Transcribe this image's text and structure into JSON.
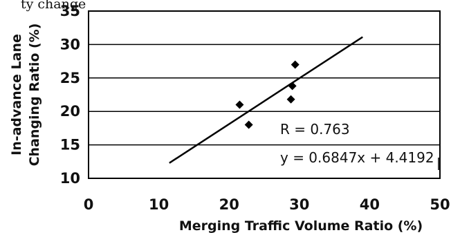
{
  "chart_data": {
    "type": "scatter",
    "top_partial_text": "ty change",
    "xlabel": "Merging Traffic Volume Ratio (%)",
    "ylabel_line1": "In-advance Lane",
    "ylabel_line2": "Changing Ratio (%)",
    "xlim": [
      0,
      50
    ],
    "ylim": [
      10,
      35
    ],
    "x_ticks": [
      "0",
      "10",
      "20",
      "30",
      "40",
      "50"
    ],
    "y_ticks": [
      "10",
      "15",
      "20",
      "25",
      "30",
      "35"
    ],
    "grid": "horizontal",
    "points": [
      {
        "x": 21.5,
        "y": 21.0
      },
      {
        "x": 22.8,
        "y": 18.0
      },
      {
        "x": 28.8,
        "y": 21.8
      },
      {
        "x": 29.0,
        "y": 23.8
      },
      {
        "x": 29.4,
        "y": 27.0
      }
    ],
    "trendline": {
      "x_start": 11.5,
      "x_end": 39.0,
      "slope": 0.6847,
      "intercept": 4.4192
    },
    "annotations": {
      "r_text": "R = 0.763",
      "equation_text": "y = 0.6847x + 4.4192"
    }
  }
}
